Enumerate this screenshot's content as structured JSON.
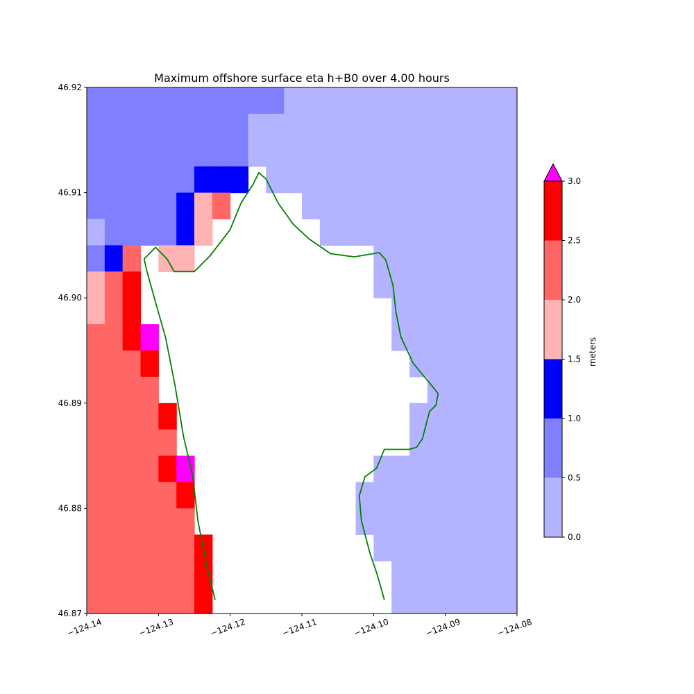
{
  "chart_data": {
    "type": "heatmap",
    "title": "Maximum offshore surface eta h+B0 over 4.00 hours",
    "xlabel": "",
    "ylabel": "",
    "xlim": [
      -124.14,
      -124.08
    ],
    "ylim": [
      46.87,
      46.92
    ],
    "grid": false,
    "x_ticks": [
      -124.14,
      -124.13,
      -124.12,
      -124.11,
      -124.1,
      -124.09,
      -124.08
    ],
    "x_tick_labels": [
      "−124.14",
      "−124.13",
      "−124.12",
      "−124.11",
      "−124.10",
      "−124.09",
      "−124.08"
    ],
    "y_ticks": [
      46.87,
      46.88,
      46.89,
      46.9,
      46.91,
      46.92
    ],
    "y_tick_labels": [
      "46.87",
      "46.88",
      "46.89",
      "46.90",
      "46.91",
      "46.92"
    ],
    "grid_shape": {
      "cols": 24,
      "rows": 20,
      "cell_deg": 0.0025
    },
    "cells_note": "rows listed from north (46.92) to south (46.87); columns from west (-124.14) to east (-124.08); values are colorbar class indices (0 = 0.0-0.5 m, 1 = 0.5-1.0 m, 2 = 1.0-1.5 m, 3 = 1.5-2.0 m, 4 = 2.0-2.5 m, 5 = 2.5-3.0 m, 6 = >3.0 m, -1 = no data)",
    "cells": [
      [
        1,
        1,
        1,
        1,
        1,
        1,
        1,
        1,
        1,
        1,
        1,
        0,
        0,
        0,
        0,
        0,
        0,
        0,
        0,
        0,
        0,
        0,
        0,
        0
      ],
      [
        1,
        1,
        1,
        1,
        1,
        1,
        1,
        1,
        1,
        0,
        0,
        0,
        0,
        0,
        0,
        0,
        0,
        0,
        0,
        0,
        0,
        0,
        0,
        0
      ],
      [
        1,
        1,
        1,
        1,
        1,
        1,
        1,
        1,
        1,
        0,
        0,
        0,
        0,
        0,
        0,
        0,
        0,
        0,
        0,
        0,
        0,
        0,
        0,
        0
      ],
      [
        1,
        1,
        1,
        1,
        1,
        1,
        2,
        2,
        2,
        -1,
        0,
        0,
        0,
        0,
        0,
        0,
        0,
        0,
        0,
        0,
        0,
        0,
        0,
        0
      ],
      [
        1,
        1,
        1,
        1,
        1,
        2,
        3,
        4,
        -1,
        -1,
        -1,
        -1,
        0,
        0,
        0,
        0,
        0,
        0,
        0,
        0,
        0,
        0,
        0,
        0
      ],
      [
        0,
        1,
        1,
        1,
        1,
        2,
        3,
        -1,
        -1,
        -1,
        -1,
        -1,
        -1,
        0,
        0,
        0,
        0,
        0,
        0,
        0,
        0,
        0,
        0,
        0
      ],
      [
        1,
        2,
        4,
        -1,
        3,
        3,
        -1,
        -1,
        -1,
        -1,
        -1,
        -1,
        -1,
        -1,
        -1,
        -1,
        0,
        0,
        0,
        0,
        0,
        0,
        0,
        0
      ],
      [
        3,
        4,
        5,
        -1,
        -1,
        -1,
        -1,
        -1,
        -1,
        -1,
        -1,
        -1,
        -1,
        -1,
        -1,
        -1,
        0,
        0,
        0,
        0,
        0,
        0,
        0,
        0
      ],
      [
        3,
        4,
        5,
        -1,
        -1,
        -1,
        -1,
        -1,
        -1,
        -1,
        -1,
        -1,
        -1,
        -1,
        -1,
        -1,
        -1,
        0,
        0,
        0,
        0,
        0,
        0,
        0
      ],
      [
        4,
        4,
        5,
        6,
        -1,
        -1,
        -1,
        -1,
        -1,
        -1,
        -1,
        -1,
        -1,
        -1,
        -1,
        -1,
        -1,
        0,
        0,
        0,
        0,
        0,
        0,
        0
      ],
      [
        4,
        4,
        4,
        5,
        -1,
        -1,
        -1,
        -1,
        -1,
        -1,
        -1,
        -1,
        -1,
        -1,
        -1,
        -1,
        -1,
        -1,
        0,
        0,
        0,
        0,
        0,
        0
      ],
      [
        4,
        4,
        4,
        4,
        -1,
        -1,
        -1,
        -1,
        -1,
        -1,
        -1,
        -1,
        -1,
        -1,
        -1,
        -1,
        -1,
        -1,
        -1,
        0,
        0,
        0,
        0,
        0
      ],
      [
        4,
        4,
        4,
        4,
        5,
        -1,
        -1,
        -1,
        -1,
        -1,
        -1,
        -1,
        -1,
        -1,
        -1,
        -1,
        -1,
        -1,
        0,
        0,
        0,
        0,
        0,
        0
      ],
      [
        4,
        4,
        4,
        4,
        4,
        -1,
        -1,
        -1,
        -1,
        -1,
        -1,
        -1,
        -1,
        -1,
        -1,
        -1,
        -1,
        -1,
        0,
        0,
        0,
        0,
        0,
        0
      ],
      [
        4,
        4,
        4,
        4,
        5,
        6,
        -1,
        -1,
        -1,
        -1,
        -1,
        -1,
        -1,
        -1,
        -1,
        -1,
        0,
        0,
        0,
        0,
        0,
        0,
        0,
        0
      ],
      [
        4,
        4,
        4,
        4,
        4,
        5,
        -1,
        -1,
        -1,
        -1,
        -1,
        -1,
        -1,
        -1,
        -1,
        0,
        0,
        0,
        0,
        0,
        0,
        0,
        0,
        0
      ],
      [
        4,
        4,
        4,
        4,
        4,
        4,
        -1,
        -1,
        -1,
        -1,
        -1,
        -1,
        -1,
        -1,
        -1,
        0,
        0,
        0,
        0,
        0,
        0,
        0,
        0,
        0
      ],
      [
        4,
        4,
        4,
        4,
        4,
        4,
        5,
        -1,
        -1,
        -1,
        -1,
        -1,
        -1,
        -1,
        -1,
        -1,
        0,
        0,
        0,
        0,
        0,
        0,
        0,
        0
      ],
      [
        4,
        4,
        4,
        4,
        4,
        4,
        5,
        -1,
        -1,
        -1,
        -1,
        -1,
        -1,
        -1,
        -1,
        -1,
        -1,
        0,
        0,
        0,
        0,
        0,
        0,
        0
      ],
      [
        4,
        4,
        4,
        4,
        4,
        4,
        5,
        -1,
        -1,
        -1,
        -1,
        -1,
        -1,
        -1,
        -1,
        -1,
        -1,
        0,
        0,
        0,
        0,
        0,
        0,
        0
      ]
    ],
    "coastline": {
      "color": "#008000",
      "points": [
        [
          -124.1221,
          46.8713
        ],
        [
          -124.1232,
          46.8743
        ],
        [
          -124.1245,
          46.8788
        ],
        [
          -124.1252,
          46.883
        ],
        [
          -124.1265,
          46.8868
        ],
        [
          -124.1277,
          46.8917
        ],
        [
          -124.129,
          46.8962
        ],
        [
          -124.1305,
          46.8998
        ],
        [
          -124.1316,
          46.9025
        ],
        [
          -124.132,
          46.9037
        ],
        [
          -124.1304,
          46.9048
        ],
        [
          -124.1288,
          46.9037
        ],
        [
          -124.1278,
          46.9025
        ],
        [
          -124.125,
          46.9025
        ],
        [
          -124.1228,
          46.904
        ],
        [
          -124.12,
          46.9065
        ],
        [
          -124.1185,
          46.909
        ],
        [
          -124.1168,
          46.9108
        ],
        [
          -124.116,
          46.9119
        ],
        [
          -124.115,
          46.9113
        ],
        [
          -124.1133,
          46.909
        ],
        [
          -124.1112,
          46.907
        ],
        [
          -124.109,
          46.9056
        ],
        [
          -124.106,
          46.9042
        ],
        [
          -124.1027,
          46.9039
        ],
        [
          -124.0992,
          46.9043
        ],
        [
          -124.0983,
          46.9036
        ],
        [
          -124.0973,
          46.9012
        ],
        [
          -124.0969,
          46.8987
        ],
        [
          -124.0962,
          46.8963
        ],
        [
          -124.0945,
          46.8938
        ],
        [
          -124.0917,
          46.8915
        ],
        [
          -124.091,
          46.8909
        ],
        [
          -124.0913,
          46.8898
        ],
        [
          -124.0922,
          46.8892
        ],
        [
          -124.0932,
          46.8866
        ],
        [
          -124.094,
          46.8858
        ],
        [
          -124.095,
          46.8856
        ],
        [
          -124.0985,
          46.8856
        ],
        [
          -124.0996,
          46.8838
        ],
        [
          -124.1012,
          46.883
        ],
        [
          -124.102,
          46.8812
        ],
        [
          -124.1017,
          46.8788
        ],
        [
          -124.1005,
          46.8757
        ],
        [
          -124.0995,
          46.8737
        ],
        [
          -124.0985,
          46.8713
        ]
      ]
    },
    "colorbar": {
      "label": "meters",
      "boundaries": [
        0.0,
        0.5,
        1.0,
        1.5,
        2.0,
        2.5,
        3.0
      ],
      "tick_labels": [
        "0.0",
        "0.5",
        "1.0",
        "1.5",
        "2.0",
        "2.5",
        "3.0"
      ],
      "colors": [
        "#b3b3ff",
        "#8080ff",
        "#0000ff",
        "#ffb3b3",
        "#ff6666",
        "#ff0000"
      ],
      "extend_max_color": "#ff00ff"
    }
  }
}
